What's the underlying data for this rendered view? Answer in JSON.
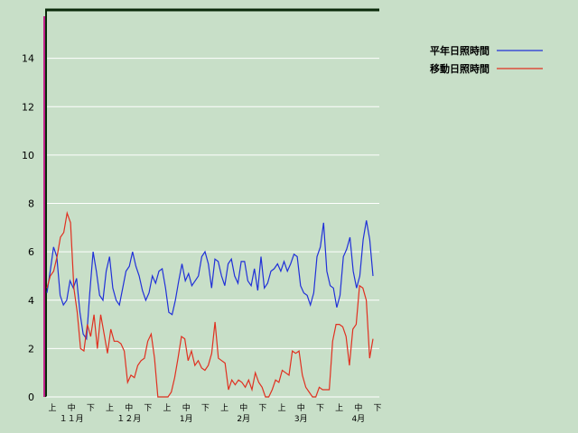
{
  "chart_data": {
    "type": "line",
    "ylim": [
      0,
      16
    ],
    "y_ticks": [
      "0",
      "2",
      "4",
      "6",
      "8",
      "10",
      "12",
      "14"
    ],
    "grid": true,
    "legend_position": "top-right",
    "x_ticks": [
      {
        "label": "上",
        "month": ""
      },
      {
        "label": "中",
        "month": "１１月"
      },
      {
        "label": "下",
        "month": ""
      },
      {
        "label": "上",
        "month": ""
      },
      {
        "label": "中",
        "month": "１２月"
      },
      {
        "label": "下",
        "month": ""
      },
      {
        "label": "上",
        "month": ""
      },
      {
        "label": "中",
        "month": "1月"
      },
      {
        "label": "下",
        "month": ""
      },
      {
        "label": "上",
        "month": ""
      },
      {
        "label": "中",
        "month": "2月"
      },
      {
        "label": "下",
        "month": ""
      },
      {
        "label": "上",
        "month": ""
      },
      {
        "label": "中",
        "month": "3月"
      },
      {
        "label": "下",
        "month": ""
      },
      {
        "label": "上",
        "month": ""
      },
      {
        "label": "中",
        "month": "4月"
      },
      {
        "label": "下",
        "month": ""
      }
    ],
    "series": [
      {
        "name": "平年日照時間",
        "color": "#2030d8",
        "values": [
          4.3,
          5.2,
          6.2,
          5.8,
          4.2,
          3.8,
          4.0,
          4.8,
          4.5,
          4.9,
          3.5,
          2.6,
          2.4,
          4.3,
          6.0,
          5.2,
          4.2,
          4.0,
          5.2,
          5.8,
          4.5,
          4.0,
          3.8,
          4.5,
          5.2,
          5.4,
          6.0,
          5.4,
          5.0,
          4.4,
          4.0,
          4.3,
          5.0,
          4.7,
          5.2,
          5.3,
          4.5,
          3.5,
          3.4,
          4.0,
          4.8,
          5.5,
          4.8,
          5.1,
          4.6,
          4.8,
          5.0,
          5.8,
          6.0,
          5.5,
          4.5,
          5.7,
          5.6,
          5.0,
          4.6,
          5.5,
          5.7,
          5.0,
          4.7,
          5.6,
          5.6,
          4.8,
          4.6,
          5.3,
          4.4,
          5.8,
          4.5,
          4.7,
          5.2,
          5.3,
          5.5,
          5.2,
          5.6,
          5.2,
          5.5,
          5.9,
          5.8,
          4.6,
          4.3,
          4.2,
          3.8,
          4.3,
          5.8,
          6.2,
          7.2,
          5.2,
          4.6,
          4.5,
          3.7,
          4.2,
          5.8,
          6.1,
          6.6,
          5.2,
          4.5,
          5.0,
          6.5,
          7.3,
          6.5,
          5.0
        ]
      },
      {
        "name": "移動日照時間",
        "color": "#e03020",
        "values": [
          4.5,
          5.0,
          5.2,
          5.8,
          6.6,
          6.8,
          7.6,
          7.2,
          4.5,
          3.5,
          2.0,
          1.9,
          3.0,
          2.5,
          3.4,
          2.0,
          3.4,
          2.6,
          1.8,
          2.8,
          2.3,
          2.3,
          2.2,
          1.9,
          0.6,
          0.9,
          0.8,
          1.3,
          1.5,
          1.6,
          2.3,
          2.6,
          1.6,
          0.0,
          0.0,
          0.0,
          0.0,
          0.2,
          0.8,
          1.6,
          2.5,
          2.4,
          1.5,
          1.9,
          1.3,
          1.5,
          1.2,
          1.1,
          1.3,
          1.8,
          3.1,
          1.6,
          1.5,
          1.4,
          0.3,
          0.7,
          0.5,
          0.7,
          0.6,
          0.4,
          0.7,
          0.3,
          1.0,
          0.6,
          0.4,
          0.0,
          0.0,
          0.3,
          0.7,
          0.6,
          1.1,
          1.0,
          0.9,
          1.9,
          1.8,
          1.9,
          0.9,
          0.4,
          0.2,
          0.0,
          0.0,
          0.4,
          0.3,
          0.3,
          0.3,
          2.3,
          3.0,
          3.0,
          2.9,
          2.5,
          1.3,
          2.8,
          3.0,
          4.6,
          4.5,
          4.0,
          1.6,
          2.4
        ]
      }
    ]
  }
}
